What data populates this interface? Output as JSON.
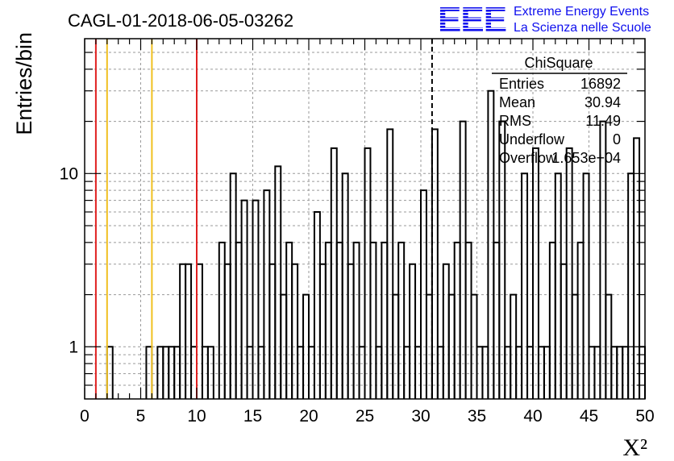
{
  "chart_data": {
    "type": "bar",
    "title": "CAGL-01-2018-06-05-03262",
    "xlabel": "X²",
    "ylabel": "Entries/bin",
    "xlim": [
      0,
      50
    ],
    "ylim": [
      0.5,
      60
    ],
    "yscale": "log",
    "grid": true,
    "x_ticks": [
      0,
      5,
      10,
      15,
      20,
      25,
      30,
      35,
      40,
      45,
      50
    ],
    "y_ticks": [
      1,
      10
    ],
    "bin_width": 0.5,
    "bins": [
      [
        2.0,
        2.5,
        1
      ],
      [
        5.5,
        6.0,
        1
      ],
      [
        6.5,
        7.0,
        1
      ],
      [
        7.0,
        7.5,
        1
      ],
      [
        7.5,
        8.0,
        1
      ],
      [
        8.0,
        8.5,
        1
      ],
      [
        8.5,
        9.0,
        3
      ],
      [
        9.0,
        9.5,
        3
      ],
      [
        9.5,
        10.0,
        1
      ],
      [
        10.0,
        10.5,
        3
      ],
      [
        10.5,
        11.0,
        1
      ],
      [
        11.0,
        11.5,
        1
      ],
      [
        12.0,
        12.5,
        4
      ],
      [
        12.5,
        13.0,
        3
      ],
      [
        13.0,
        13.5,
        10
      ],
      [
        13.5,
        14.0,
        4
      ],
      [
        14.0,
        14.5,
        7
      ],
      [
        14.5,
        15.0,
        1
      ],
      [
        15.0,
        15.5,
        7
      ],
      [
        15.5,
        16.0,
        1
      ],
      [
        16.0,
        16.5,
        8
      ],
      [
        16.5,
        17.0,
        3
      ],
      [
        17.0,
        17.5,
        11
      ],
      [
        17.5,
        18.0,
        2
      ],
      [
        18.0,
        18.5,
        4
      ],
      [
        18.5,
        19.0,
        3
      ],
      [
        19.0,
        19.5,
        1
      ],
      [
        19.5,
        20.0,
        2
      ],
      [
        20.0,
        20.5,
        1
      ],
      [
        20.5,
        21.0,
        6
      ],
      [
        21.0,
        21.5,
        3
      ],
      [
        21.5,
        22.0,
        4
      ],
      [
        22.0,
        22.5,
        14
      ],
      [
        22.5,
        23.0,
        4
      ],
      [
        23.0,
        23.5,
        10
      ],
      [
        23.5,
        24.0,
        3
      ],
      [
        24.0,
        24.5,
        4
      ],
      [
        24.5,
        25.0,
        1
      ],
      [
        25.0,
        25.5,
        14
      ],
      [
        25.5,
        26.0,
        4
      ],
      [
        26.0,
        26.5,
        1
      ],
      [
        26.5,
        27.0,
        4
      ],
      [
        27.0,
        27.5,
        18
      ],
      [
        27.5,
        28.0,
        2
      ],
      [
        28.0,
        28.5,
        4
      ],
      [
        28.5,
        29.0,
        1
      ],
      [
        29.0,
        29.5,
        3
      ],
      [
        29.5,
        30.0,
        1
      ],
      [
        30.0,
        30.5,
        8
      ],
      [
        30.5,
        31.0,
        2
      ],
      [
        31.0,
        31.5,
        18
      ],
      [
        31.5,
        32.0,
        1
      ],
      [
        32.0,
        32.5,
        3
      ],
      [
        32.5,
        33.0,
        2
      ],
      [
        33.0,
        33.5,
        4
      ],
      [
        33.5,
        34.0,
        20
      ],
      [
        34.0,
        34.5,
        4
      ],
      [
        34.5,
        35.0,
        2
      ],
      [
        35.0,
        35.5,
        1
      ],
      [
        35.5,
        36.0,
        1
      ],
      [
        36.0,
        36.5,
        30
      ],
      [
        36.5,
        37.0,
        4
      ],
      [
        37.0,
        37.5,
        20
      ],
      [
        37.5,
        38.0,
        1
      ],
      [
        38.0,
        38.5,
        2
      ],
      [
        38.5,
        39.0,
        1
      ],
      [
        39.0,
        39.5,
        10
      ],
      [
        39.5,
        40.0,
        1
      ],
      [
        40.0,
        40.5,
        14
      ],
      [
        40.5,
        41.0,
        1
      ],
      [
        41.0,
        41.5,
        1
      ],
      [
        41.5,
        42.0,
        4
      ],
      [
        42.0,
        42.5,
        10
      ],
      [
        42.5,
        43.0,
        3
      ],
      [
        43.0,
        43.5,
        14
      ],
      [
        43.5,
        44.0,
        2
      ],
      [
        44.0,
        44.5,
        4
      ],
      [
        44.5,
        45.0,
        10
      ],
      [
        45.0,
        45.5,
        1
      ],
      [
        45.5,
        46.0,
        1
      ],
      [
        46.0,
        46.5,
        20
      ],
      [
        46.5,
        47.0,
        2
      ],
      [
        47.0,
        47.5,
        1
      ],
      [
        47.5,
        48.0,
        1
      ],
      [
        48.0,
        48.5,
        1
      ],
      [
        48.5,
        49.0,
        10
      ],
      [
        49.0,
        49.5,
        16
      ],
      [
        49.5,
        50.0,
        1
      ]
    ],
    "vertical_lines": [
      {
        "x": 1,
        "color": "#e02020",
        "style": "solid"
      },
      {
        "x": 10,
        "color": "#e02020",
        "style": "solid"
      },
      {
        "x": 2,
        "color": "#f0c020",
        "style": "solid"
      },
      {
        "x": 6,
        "color": "#f0c020",
        "style": "solid"
      },
      {
        "x": 31,
        "color": "#000000",
        "style": "dashed"
      }
    ],
    "stats_box": {
      "title": "ChiSquare",
      "rows": [
        {
          "label": "Entries",
          "value": "16892"
        },
        {
          "label": "Mean",
          "value": "30.94"
        },
        {
          "label": "RMS",
          "value": "11.49"
        },
        {
          "label": "Underflow",
          "value": "0"
        },
        {
          "label": "Overflow",
          "value": "1.653e+04"
        }
      ]
    }
  },
  "logo": {
    "mark": "EEE",
    "line1": "Extreme Energy Events",
    "line2": "La Scienza nelle Scuole",
    "color": "#1010ee"
  }
}
